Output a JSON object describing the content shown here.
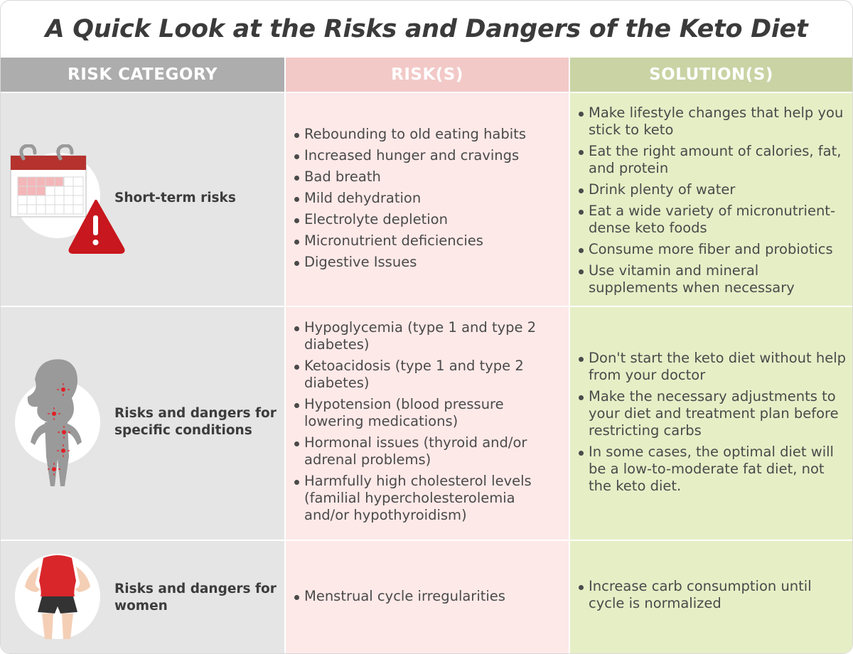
{
  "title": "A Quick Look at the Risks and Dangers of the Keto Diet",
  "headers": {
    "category": "RISK CATEGORY",
    "risks": "RISK(S)",
    "solutions": "SOLUTION(S)"
  },
  "colors": {
    "category_bg": "#e5e5e5",
    "risks_bg": "#fde9e8",
    "solutions_bg": "#e6eec6",
    "header_category": "#adadad",
    "header_risks": "#f2c9c7",
    "header_solutions": "#c9d3a4",
    "warning_red": "#c8171e"
  },
  "rows": [
    {
      "icon": "calendar-warning-icon",
      "category": "Short-term risks",
      "risks": [
        "Rebounding to old eating habits",
        "Increased hunger and cravings",
        "Bad breath",
        "Mild dehydration",
        "Electrolyte depletion",
        "Micronutrient deficiencies",
        "Digestive Issues"
      ],
      "solutions": [
        "Make lifestyle changes that help you stick to keto",
        "Eat the right amount of calories, fat, and protein",
        "Drink plenty of water",
        "Eat a wide variety of micronutrient-dense keto foods",
        "Consume more fiber and probiotics",
        "Use vitamin and mineral supplements when necessary"
      ]
    },
    {
      "icon": "body-pain-points-icon",
      "category": "Risks and dangers for specific conditions",
      "risks": [
        "Hypoglycemia (type 1 and type 2 diabetes)",
        "Ketoacidosis (type 1 and type 2 diabetes)",
        "Hypotension (blood pressure lowering medications)",
        "Hormonal issues (thyroid and/or adrenal problems)",
        "Harmfully high cholesterol levels (familial hypercholesterolemia and/or hypothyroidism)"
      ],
      "solutions": [
        "Don't start the keto diet without help from your doctor",
        "Make the necessary adjustments to your diet and treatment plan before restricting carbs",
        "In some cases, the optimal diet will be a low-to-moderate fat diet, not the keto diet."
      ]
    },
    {
      "icon": "woman-torso-icon",
      "category": "Risks and dangers for women",
      "risks": [
        "Menstrual cycle irregularities"
      ],
      "solutions": [
        "Increase carb consumption until cycle is normalized"
      ]
    }
  ]
}
